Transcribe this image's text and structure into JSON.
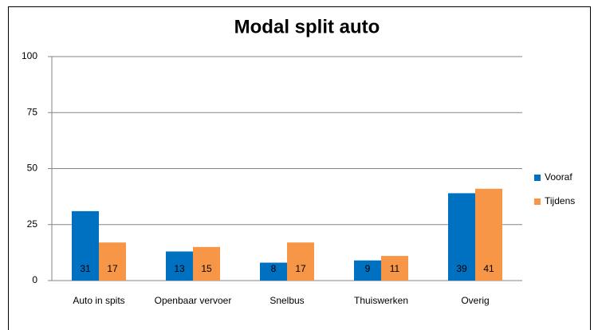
{
  "chart_data": {
    "type": "bar",
    "title": "Modal split auto",
    "categories": [
      "Auto in spits",
      "Openbaar vervoer",
      "Snelbus",
      "Thuiswerken",
      "Overig"
    ],
    "series": [
      {
        "name": "Vooraf",
        "color": "#0070c0",
        "values": [
          31,
          13,
          8,
          9,
          39
        ]
      },
      {
        "name": "Tijdens",
        "color": "#f79646",
        "values": [
          17,
          15,
          17,
          11,
          41
        ]
      }
    ],
    "ylim": [
      0,
      100
    ],
    "yticks": [
      0,
      25,
      50,
      75,
      100
    ],
    "grid": true,
    "legend": "right"
  }
}
